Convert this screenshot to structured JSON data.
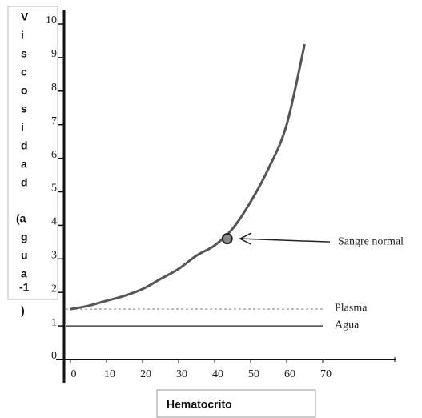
{
  "chart_data": {
    "type": "line",
    "y_label_lines": [
      "V",
      "i",
      "s",
      "c",
      "o",
      "s",
      "i",
      "d",
      "a",
      "d",
      "(a",
      "g",
      "u",
      "a",
      "-1",
      ")"
    ],
    "x_label": "Hematocrito",
    "xlim": [
      0,
      90
    ],
    "xticks": [
      0,
      10,
      20,
      30,
      40,
      50,
      60,
      70
    ],
    "ylim": [
      0,
      10
    ],
    "yticks": [
      0,
      1,
      2,
      3,
      4,
      5,
      6,
      7,
      8,
      9,
      10
    ],
    "series": [
      {
        "color": "#555555",
        "x": [
          0,
          5,
          10,
          15,
          20,
          25,
          30,
          35,
          40,
          45,
          50,
          55,
          60,
          65
        ],
        "values": [
          1.5,
          1.6,
          1.75,
          1.9,
          2.1,
          2.4,
          2.7,
          3.1,
          3.4,
          3.9,
          4.7,
          5.7,
          7.0,
          9.4
        ]
      }
    ],
    "reference_lines": [
      {
        "name": "Plasma",
        "value": 1.5,
        "style": "dashed",
        "color": "#aaaaaa"
      },
      {
        "name": "Agua",
        "value": 1.0,
        "style": "solid",
        "color": "#444444"
      }
    ],
    "point": {
      "name": "Sangre normal",
      "x": 43.5,
      "y": 3.6,
      "color": "#888888"
    }
  }
}
